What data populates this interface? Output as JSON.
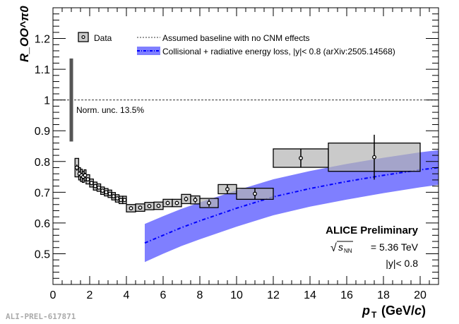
{
  "chart_data": {
    "type": "scatter",
    "title": "",
    "xlabel": "p_T (GeV/c)",
    "ylabel": "R_OO^π0",
    "xlim": [
      0,
      21
    ],
    "ylim": [
      0.4,
      1.3
    ],
    "xticks": [
      0,
      2,
      4,
      6,
      8,
      10,
      12,
      14,
      16,
      18,
      20
    ],
    "yticks": [
      0.5,
      0.6,
      0.7,
      0.8,
      0.9,
      1,
      1.1,
      1.2
    ],
    "series": [
      {
        "name": "Data",
        "x_low": [
          1.2,
          1.4,
          1.5,
          1.6,
          1.7,
          1.8,
          2.0,
          2.2,
          2.4,
          2.6,
          2.8,
          3.0,
          3.2,
          3.4,
          3.6,
          3.8,
          4.0,
          4.5,
          5.0,
          5.5,
          6.0,
          6.5,
          7.0,
          7.5,
          8.0,
          9.0,
          10.0,
          12.0,
          15.0
        ],
        "x_high": [
          1.4,
          1.5,
          1.6,
          1.7,
          1.8,
          2.0,
          2.2,
          2.4,
          2.6,
          2.8,
          3.0,
          3.2,
          3.4,
          3.6,
          3.8,
          4.0,
          4.5,
          5.0,
          5.5,
          6.0,
          6.5,
          7.0,
          7.5,
          8.0,
          9.0,
          10.0,
          12.0,
          15.0,
          20.0
        ],
        "y": [
          0.78,
          0.76,
          0.755,
          0.75,
          0.755,
          0.742,
          0.73,
          0.72,
          0.715,
          0.705,
          0.7,
          0.695,
          0.687,
          0.68,
          0.675,
          0.675,
          0.648,
          0.65,
          0.655,
          0.656,
          0.665,
          0.665,
          0.678,
          0.675,
          0.665,
          0.71,
          0.695,
          0.811,
          0.814
        ],
        "stat_err": [
          0.01,
          0.008,
          0.008,
          0.008,
          0.008,
          0.007,
          0.007,
          0.006,
          0.006,
          0.006,
          0.006,
          0.006,
          0.006,
          0.006,
          0.006,
          0.006,
          0.006,
          0.006,
          0.006,
          0.006,
          0.007,
          0.007,
          0.008,
          0.01,
          0.012,
          0.015,
          0.018,
          0.03,
          0.073
        ],
        "sys_err": [
          0.03,
          0.02,
          0.02,
          0.018,
          0.018,
          0.015,
          0.013,
          0.013,
          0.012,
          0.012,
          0.012,
          0.012,
          0.012,
          0.012,
          0.012,
          0.012,
          0.012,
          0.012,
          0.012,
          0.012,
          0.012,
          0.012,
          0.015,
          0.013,
          0.015,
          0.015,
          0.018,
          0.03,
          0.046
        ]
      },
      {
        "name": "Collisional + radiative energy loss, |y|< 0.8 (arXiv:2505.14568)",
        "x": [
          5,
          6,
          7,
          8,
          10,
          12,
          14,
          16,
          18,
          20,
          21
        ],
        "central": [
          0.535,
          0.56,
          0.585,
          0.607,
          0.648,
          0.685,
          0.712,
          0.735,
          0.755,
          0.773,
          0.78
        ],
        "low": [
          0.473,
          0.5,
          0.525,
          0.547,
          0.588,
          0.625,
          0.653,
          0.676,
          0.697,
          0.716,
          0.724
        ],
        "high": [
          0.597,
          0.622,
          0.646,
          0.667,
          0.706,
          0.742,
          0.769,
          0.792,
          0.812,
          0.83,
          0.837
        ]
      }
    ],
    "baseline": 1,
    "norm_unc": {
      "label": "Norm. unc. 13.5%",
      "value": 0.135
    },
    "legend": {
      "placement": "top",
      "entries": [
        "Data",
        "Assumed baseline with no CNM effects",
        "Collisional + radiative energy loss, |y|< 0.8 (arXiv:2505.14568)"
      ]
    },
    "annotations": {
      "experiment": "ALICE Preliminary",
      "energy_label": "√s_NN = 5.36 TeV",
      "energy_sym": "s",
      "energy_sub": "NN",
      "energy_val": "= 5.36 TeV",
      "rapidity": "|y|< 0.8",
      "figure_id": "ALI-PREL-617871"
    },
    "colors": {
      "model": "#7f7fff",
      "model_line": "#0000ff",
      "data_fill": "#cccccc"
    }
  }
}
